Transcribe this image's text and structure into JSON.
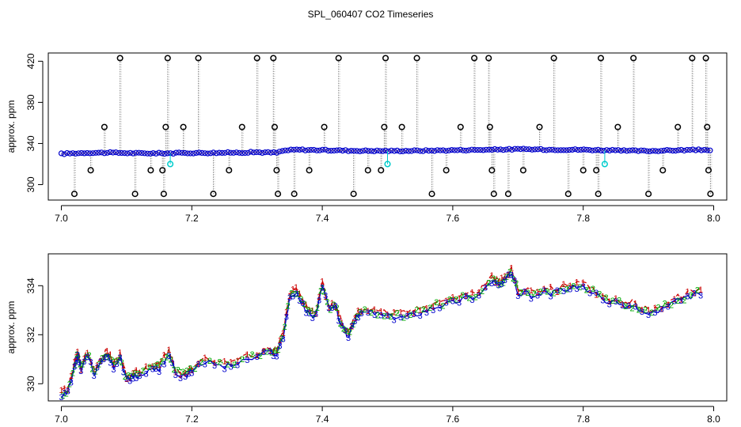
{
  "figure": {
    "title": "SPL_060407  CO2 Timeseries"
  },
  "chart_data": [
    {
      "type": "scatter",
      "ylabel": "approx. ppm",
      "xlabel": "",
      "xlim": [
        6.98,
        8.02
      ],
      "ylim": [
        285,
        428
      ],
      "xticks": [
        7.0,
        7.2,
        7.4,
        7.6,
        7.8,
        8.0
      ],
      "xtick_labels": [
        "7.0",
        "7.2",
        "7.4",
        "7.6",
        "7.8",
        "8.0"
      ],
      "yticks": [
        300,
        340,
        380,
        420
      ],
      "ytick_labels": [
        "300",
        "340",
        "380",
        "420"
      ],
      "grid": false,
      "colors": {
        "points": "#0000cc",
        "outliers": "#000000",
        "drops": "#00cccc",
        "traces": "#888888"
      },
      "baseline": [
        {
          "x": 7.0,
          "y": 330.0
        },
        {
          "x": 7.02,
          "y": 330.5
        },
        {
          "x": 7.04,
          "y": 331.0
        },
        {
          "x": 7.08,
          "y": 331.0
        },
        {
          "x": 7.12,
          "y": 330.5
        },
        {
          "x": 7.16,
          "y": 330.5
        },
        {
          "x": 7.2,
          "y": 330.8
        },
        {
          "x": 7.25,
          "y": 331.0
        },
        {
          "x": 7.3,
          "y": 331.5
        },
        {
          "x": 7.33,
          "y": 331.0
        },
        {
          "x": 7.34,
          "y": 333.0
        },
        {
          "x": 7.36,
          "y": 334.0
        },
        {
          "x": 7.4,
          "y": 333.5
        },
        {
          "x": 7.45,
          "y": 333.0
        },
        {
          "x": 7.5,
          "y": 332.8
        },
        {
          "x": 7.55,
          "y": 333.0
        },
        {
          "x": 7.6,
          "y": 333.5
        },
        {
          "x": 7.66,
          "y": 334.0
        },
        {
          "x": 7.7,
          "y": 334.5
        },
        {
          "x": 7.75,
          "y": 334.0
        },
        {
          "x": 7.8,
          "y": 334.0
        },
        {
          "x": 7.83,
          "y": 333.5
        },
        {
          "x": 7.86,
          "y": 333.0
        },
        {
          "x": 7.9,
          "y": 332.8
        },
        {
          "x": 7.95,
          "y": 333.5
        },
        {
          "x": 7.99,
          "y": 333.8
        }
      ],
      "outliers": [
        {
          "x": 7.02,
          "y": 291
        },
        {
          "x": 7.045,
          "y": 314
        },
        {
          "x": 7.066,
          "y": 356
        },
        {
          "x": 7.09,
          "y": 423
        },
        {
          "x": 7.113,
          "y": 291
        },
        {
          "x": 7.137,
          "y": 314
        },
        {
          "x": 7.157,
          "y": 291
        },
        {
          "x": 7.16,
          "y": 356
        },
        {
          "x": 7.163,
          "y": 423
        },
        {
          "x": 7.155,
          "y": 314
        },
        {
          "x": 7.187,
          "y": 356
        },
        {
          "x": 7.21,
          "y": 423
        },
        {
          "x": 7.233,
          "y": 291
        },
        {
          "x": 7.257,
          "y": 314
        },
        {
          "x": 7.277,
          "y": 356
        },
        {
          "x": 7.3,
          "y": 423
        },
        {
          "x": 7.325,
          "y": 423
        },
        {
          "x": 7.327,
          "y": 356
        },
        {
          "x": 7.33,
          "y": 314
        },
        {
          "x": 7.332,
          "y": 291
        },
        {
          "x": 7.357,
          "y": 291
        },
        {
          "x": 7.38,
          "y": 314
        },
        {
          "x": 7.403,
          "y": 356
        },
        {
          "x": 7.425,
          "y": 423
        },
        {
          "x": 7.448,
          "y": 291
        },
        {
          "x": 7.47,
          "y": 314
        },
        {
          "x": 7.49,
          "y": 314
        },
        {
          "x": 7.495,
          "y": 356
        },
        {
          "x": 7.497,
          "y": 423
        },
        {
          "x": 7.522,
          "y": 356
        },
        {
          "x": 7.545,
          "y": 423
        },
        {
          "x": 7.568,
          "y": 291
        },
        {
          "x": 7.59,
          "y": 314
        },
        {
          "x": 7.612,
          "y": 356
        },
        {
          "x": 7.633,
          "y": 423
        },
        {
          "x": 7.655,
          "y": 423
        },
        {
          "x": 7.657,
          "y": 356
        },
        {
          "x": 7.66,
          "y": 314
        },
        {
          "x": 7.663,
          "y": 291
        },
        {
          "x": 7.685,
          "y": 291
        },
        {
          "x": 7.708,
          "y": 314
        },
        {
          "x": 7.733,
          "y": 356
        },
        {
          "x": 7.755,
          "y": 423
        },
        {
          "x": 7.777,
          "y": 291
        },
        {
          "x": 7.8,
          "y": 314
        },
        {
          "x": 7.82,
          "y": 314
        },
        {
          "x": 7.823,
          "y": 291
        },
        {
          "x": 7.827,
          "y": 423
        },
        {
          "x": 7.853,
          "y": 356
        },
        {
          "x": 7.877,
          "y": 423
        },
        {
          "x": 7.9,
          "y": 291
        },
        {
          "x": 7.922,
          "y": 314
        },
        {
          "x": 7.945,
          "y": 356
        },
        {
          "x": 7.967,
          "y": 423
        },
        {
          "x": 7.988,
          "y": 423
        },
        {
          "x": 7.99,
          "y": 356
        },
        {
          "x": 7.992,
          "y": 314
        },
        {
          "x": 7.995,
          "y": 291
        }
      ],
      "drops": [
        {
          "x": 7.167,
          "y": 320
        },
        {
          "x": 7.5,
          "y": 320
        },
        {
          "x": 7.833,
          "y": 320
        }
      ]
    },
    {
      "type": "line",
      "ylabel": "approx. ppm",
      "xlabel": "",
      "xlim": [
        6.98,
        8.02
      ],
      "ylim": [
        329.3,
        335.3
      ],
      "xticks": [
        7.0,
        7.2,
        7.4,
        7.6,
        7.8,
        8.0
      ],
      "xtick_labels": [
        "7.0",
        "7.2",
        "7.4",
        "7.6",
        "7.8",
        "8.0"
      ],
      "yticks": [
        330,
        332,
        334
      ],
      "ytick_labels": [
        "330",
        "332",
        "334"
      ],
      "grid": false,
      "marker_labels": [
        "1",
        "2",
        "3"
      ],
      "series_colors": [
        "#cc0000",
        "#00aa00",
        "#0000cc"
      ],
      "x": [
        7.0,
        7.01,
        7.02,
        7.025,
        7.03,
        7.04,
        7.05,
        7.06,
        7.07,
        7.08,
        7.09,
        7.1,
        7.11,
        7.12,
        7.14,
        7.15,
        7.165,
        7.175,
        7.19,
        7.2,
        7.22,
        7.25,
        7.27,
        7.3,
        7.32,
        7.33,
        7.34,
        7.35,
        7.36,
        7.37,
        7.38,
        7.39,
        7.4,
        7.41,
        7.42,
        7.43,
        7.44,
        7.45,
        7.46,
        7.48,
        7.5,
        7.52,
        7.54,
        7.56,
        7.58,
        7.6,
        7.62,
        7.64,
        7.66,
        7.67,
        7.68,
        7.69,
        7.7,
        7.72,
        7.74,
        7.76,
        7.78,
        7.8,
        7.82,
        7.84,
        7.86,
        7.88,
        7.9,
        7.92,
        7.94,
        7.96,
        7.98
      ],
      "values": [
        329.6,
        329.7,
        330.8,
        331.2,
        330.6,
        331.3,
        330.5,
        330.9,
        331.3,
        330.8,
        331.1,
        330.2,
        330.4,
        330.4,
        330.7,
        330.7,
        331.3,
        330.5,
        330.4,
        330.6,
        331.0,
        330.8,
        330.9,
        331.2,
        331.4,
        331.3,
        332.0,
        333.6,
        333.8,
        333.3,
        332.9,
        332.9,
        334.1,
        333.1,
        333.2,
        332.4,
        332.0,
        332.7,
        333.0,
        333.0,
        332.8,
        332.8,
        332.9,
        333.1,
        333.3,
        333.4,
        333.6,
        333.7,
        334.3,
        334.1,
        334.3,
        334.6,
        333.8,
        333.7,
        333.8,
        333.8,
        334.0,
        334.0,
        333.7,
        333.4,
        333.3,
        333.2,
        332.9,
        333.1,
        333.4,
        333.6,
        333.8
      ]
    }
  ]
}
